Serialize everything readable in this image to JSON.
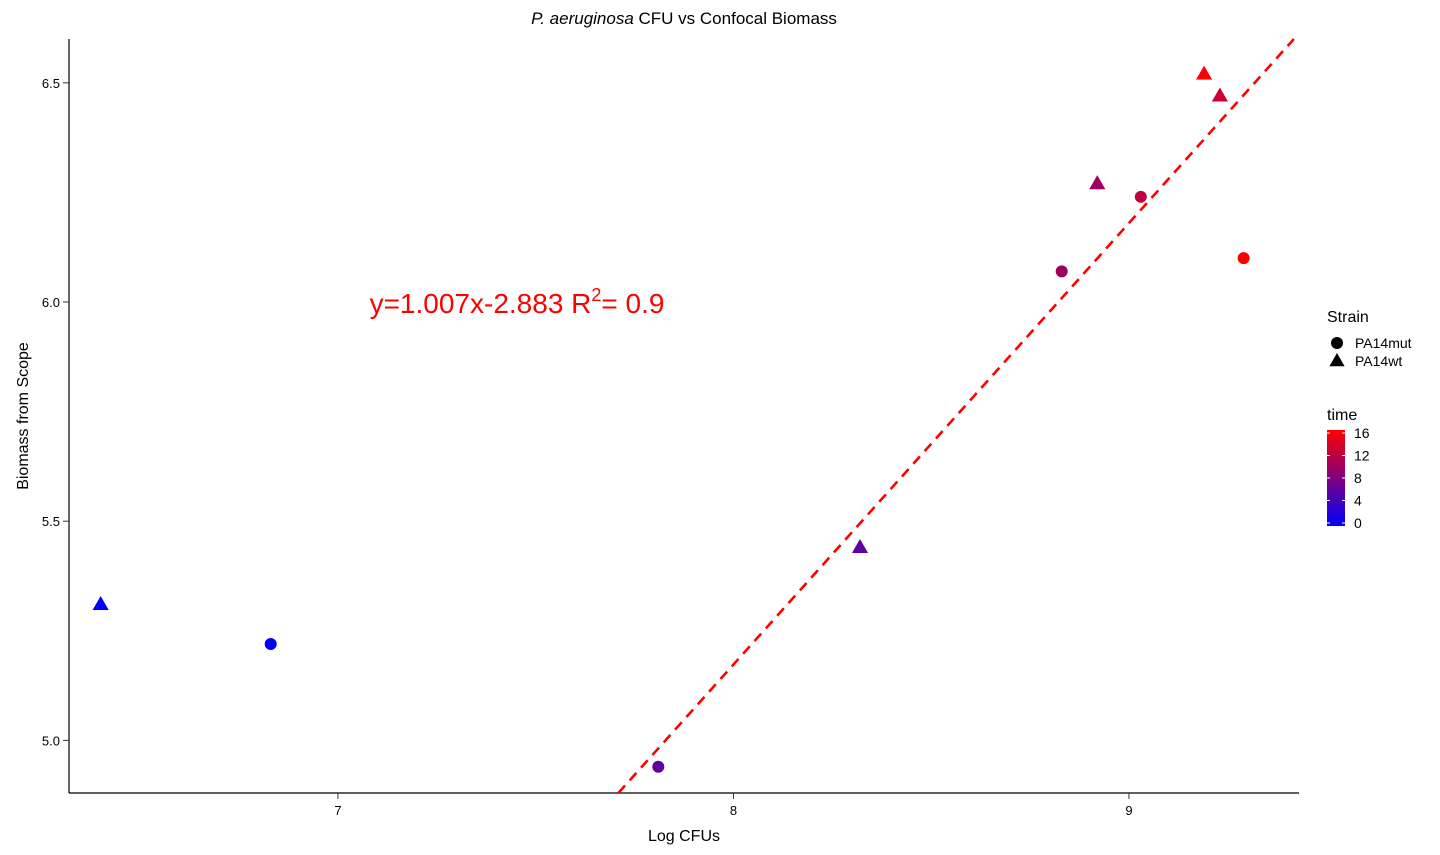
{
  "chart_data": {
    "type": "scatter",
    "title": {
      "italic_part": "P. aeruginosa",
      "rest": " CFU vs Confocal Biomass"
    },
    "xlabel": "Log CFUs",
    "ylabel": "Biomass from Scope",
    "xlim": [
      6.32,
      9.43
    ],
    "ylim": [
      4.88,
      6.6
    ],
    "xticks": [
      7,
      8,
      9
    ],
    "xtick_labels": [
      "7",
      "8",
      "9"
    ],
    "yticks": [
      5.0,
      5.5,
      6.0,
      6.5
    ],
    "ytick_labels": [
      "5.0",
      "5.5",
      "6.0",
      "6.5"
    ],
    "grid": false,
    "legend_position": "right",
    "points": [
      {
        "x": 6.4,
        "y": 5.31,
        "time": 0,
        "strain": "PA14wt"
      },
      {
        "x": 6.83,
        "y": 5.22,
        "time": 0,
        "strain": "PA14mut"
      },
      {
        "x": 7.81,
        "y": 4.94,
        "time": 6,
        "strain": "PA14mut"
      },
      {
        "x": 8.32,
        "y": 5.44,
        "time": 6,
        "strain": "PA14wt"
      },
      {
        "x": 8.83,
        "y": 6.07,
        "time": 10,
        "strain": "PA14mut"
      },
      {
        "x": 8.92,
        "y": 6.27,
        "time": 10,
        "strain": "PA14wt"
      },
      {
        "x": 9.03,
        "y": 6.24,
        "time": 12,
        "strain": "PA14mut"
      },
      {
        "x": 9.19,
        "y": 6.52,
        "time": 16,
        "strain": "PA14wt"
      },
      {
        "x": 9.23,
        "y": 6.47,
        "time": 13,
        "strain": "PA14wt"
      },
      {
        "x": 9.29,
        "y": 6.1,
        "time": 16,
        "strain": "PA14mut"
      }
    ],
    "fit_line": {
      "slope": 1.007,
      "intercept": -2.883,
      "color": "#ff0000",
      "style": "dashed",
      "label_main": "y=1.007x-2.883  R",
      "label_sup": "2",
      "label_tail": "= 0.9",
      "label_x": 7.08,
      "label_y": 6.0
    },
    "legend_strain": {
      "title": "Strain",
      "items": [
        {
          "label": "PA14mut",
          "shape": "circle"
        },
        {
          "label": "PA14wt",
          "shape": "triangle"
        }
      ]
    },
    "legend_time": {
      "title": "time",
      "min": 0,
      "max": 16,
      "ticks": [
        0,
        4,
        8,
        12,
        16
      ],
      "tick_labels": [
        "0",
        "4",
        "8",
        "12",
        "16"
      ],
      "low_color": "#0000ff",
      "high_color": "#ff0000"
    }
  }
}
